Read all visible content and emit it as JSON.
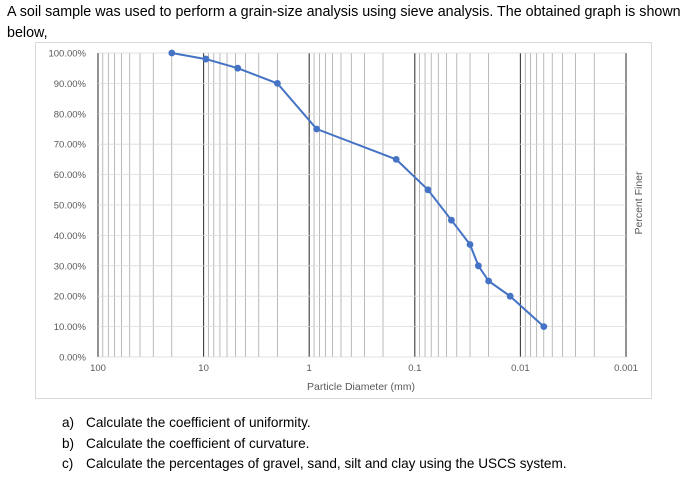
{
  "question": {
    "text": "A soil sample was used to perform a grain-size analysis using sieve analysis. The obtained graph is shown below,"
  },
  "chart_data": {
    "type": "line",
    "xlabel": "Particle Diameter (mm)",
    "ylabel": "Percent Finer",
    "x_scale": "log",
    "x_reversed": true,
    "xlim": [
      100,
      0.001
    ],
    "ylim": [
      0,
      100
    ],
    "x_ticks": [
      100,
      10,
      1,
      0.1,
      0.01,
      0.001
    ],
    "x_tick_labels": [
      "100",
      "10",
      "1",
      "0.1",
      "0.01",
      "0.001"
    ],
    "y_ticks": [
      0,
      10,
      20,
      30,
      40,
      50,
      60,
      70,
      80,
      90,
      100
    ],
    "y_tick_labels": [
      "0.00%",
      "10.00%",
      "20.00%",
      "30.00%",
      "40.00%",
      "50.00%",
      "60.00%",
      "70.00%",
      "80.00%",
      "90.00%",
      "100.00%"
    ],
    "grid": "vertical log gridlines, horizontal major gridlines",
    "series": [
      {
        "color": "#4472c4",
        "points": [
          [
            20,
            100
          ],
          [
            9.5,
            98
          ],
          [
            4.75,
            95
          ],
          [
            2,
            90
          ],
          [
            0.85,
            75
          ],
          [
            0.15,
            65
          ],
          [
            0.075,
            55
          ],
          [
            0.045,
            45
          ],
          [
            0.03,
            37
          ],
          [
            0.025,
            30
          ],
          [
            0.02,
            25
          ],
          [
            0.0125,
            20
          ],
          [
            0.006,
            10
          ]
        ]
      }
    ]
  },
  "tasks": [
    {
      "marker": "a)",
      "text": "Calculate the coefficient of uniformity."
    },
    {
      "marker": "b)",
      "text": "Calculate the coefficient of curvature."
    },
    {
      "marker": "c)",
      "text": "Calculate the percentages of gravel, sand, silt and clay using the USCS system."
    }
  ]
}
